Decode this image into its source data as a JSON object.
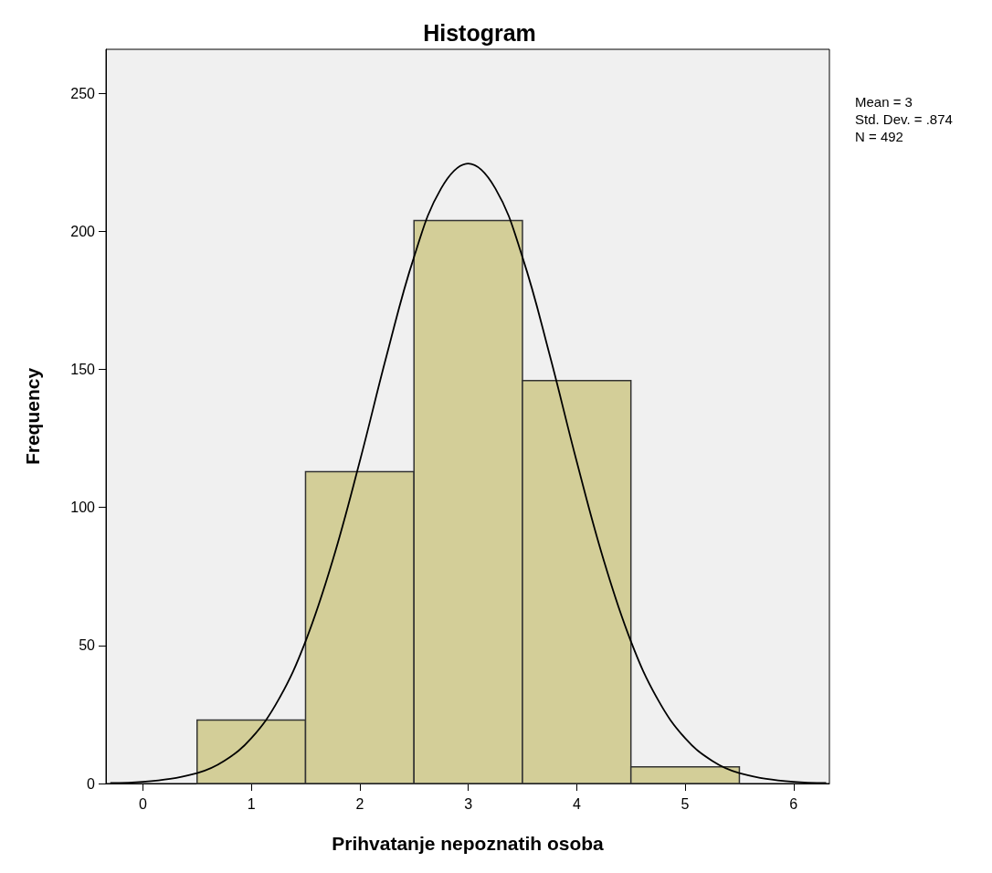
{
  "chart_data": {
    "type": "histogram",
    "title": "Histogram",
    "xlabel": "Prihvatanje nepoznatih osoba",
    "ylabel": "Frequency",
    "bins": [
      0.5,
      1.5,
      2.5,
      3.5,
      4.5,
      5.5
    ],
    "values": [
      23,
      113,
      204,
      146,
      6
    ],
    "color": "#d3ce98",
    "series": [
      {
        "type": "line",
        "color": "#000000",
        "x": [
          -0.3,
          0,
          0.5,
          0.75,
          1,
          1.25,
          1.5,
          1.75,
          2,
          2.25,
          2.5,
          2.75,
          3,
          3.25,
          3.5,
          3.75,
          4,
          4.25,
          4.5,
          4.75,
          5,
          5.25,
          5.5,
          6,
          6.3
        ],
        "values": [
          0.2,
          0.6,
          3.8,
          8.2,
          16.4,
          30.3,
          51.5,
          80.8,
          116.7,
          155.4,
          190.7,
          215.6,
          224.6,
          215.6,
          190.7,
          155.4,
          116.7,
          80.8,
          51.5,
          30.3,
          16.4,
          8.2,
          3.8,
          0.6,
          0.2
        ]
      }
    ],
    "annotations": [
      "Mean = 3",
      "Std. Dev. = .874",
      "N = 492"
    ],
    "xlim": [
      -0.34,
      6.33
    ],
    "xticks": [
      0,
      1,
      2,
      3,
      4,
      5,
      6
    ],
    "ylim": [
      0,
      266
    ],
    "yticks": [
      0,
      50,
      100,
      150,
      200,
      250
    ],
    "grid": false,
    "marker": "none",
    "line_style": "solid"
  }
}
